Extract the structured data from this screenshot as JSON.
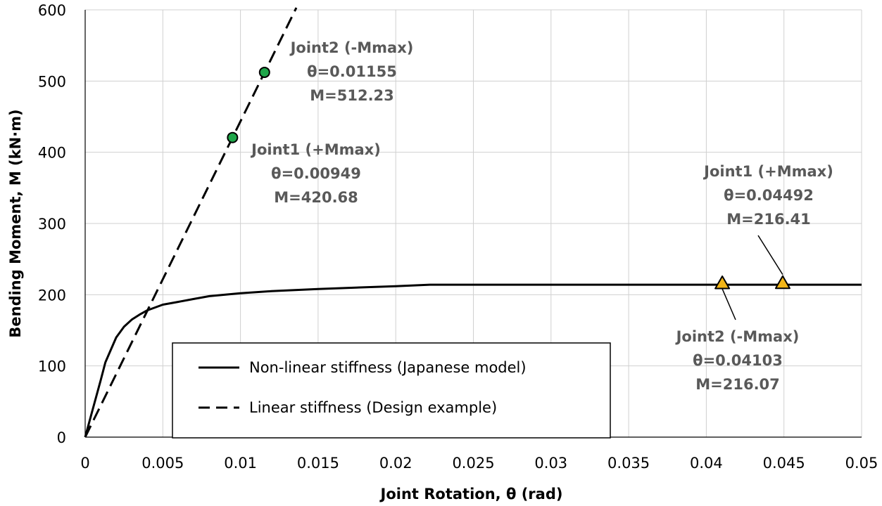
{
  "chart_data": {
    "type": "line",
    "title": "",
    "xlabel": "Joint Rotation, θ (rad)",
    "ylabel": "Bending Moment, M (kN·m)",
    "xlim": [
      0,
      0.05
    ],
    "ylim": [
      0,
      600
    ],
    "xticks": [
      0,
      0.005,
      0.01,
      0.015,
      0.02,
      0.025,
      0.03,
      0.035,
      0.04,
      0.045,
      0.05
    ],
    "xtick_labels": [
      "0",
      "0.005",
      "0.01",
      "0.015",
      "0.02",
      "0.025",
      "0.03",
      "0.035",
      "0.04",
      "0.045",
      "0.05"
    ],
    "yticks": [
      0,
      100,
      200,
      300,
      400,
      500,
      600
    ],
    "ytick_labels": [
      "0",
      "100",
      "200",
      "300",
      "400",
      "500",
      "600"
    ],
    "grid": true,
    "legend_position": "bottom-left",
    "series": [
      {
        "name": "Non-linear stiffness (Japanese model)",
        "style": "solid",
        "color": "#000000",
        "x": [
          0,
          0.0005,
          0.001,
          0.0013,
          0.0016,
          0.002,
          0.0025,
          0.003,
          0.0035,
          0.004,
          0.005,
          0.006,
          0.007,
          0.008,
          0.01,
          0.012,
          0.015,
          0.02,
          0.0222,
          0.05
        ],
        "y": [
          0,
          40,
          80,
          105,
          120,
          140,
          155,
          165,
          172,
          178,
          186,
          190,
          194,
          198,
          202,
          205,
          208,
          212,
          214,
          214
        ]
      },
      {
        "name": "Linear stiffness (Design example)",
        "style": "dashed",
        "color": "#000000",
        "x": [
          0,
          0.0136
        ],
        "y": [
          0,
          603
        ]
      }
    ],
    "markers": [
      {
        "name": "Joint2 (-Mmax)",
        "shape": "circle",
        "color": "#1fa64a",
        "x": 0.01155,
        "y": 512.23
      },
      {
        "name": "Joint1 (+Mmax)",
        "shape": "circle",
        "color": "#1fa64a",
        "x": 0.00949,
        "y": 420.68
      },
      {
        "name": "Joint2 (-Mmax)",
        "shape": "triangle",
        "color": "#f2b517",
        "x": 0.04103,
        "y": 216.07
      },
      {
        "name": "Joint1 (+Mmax)",
        "shape": "triangle",
        "color": "#f2b517",
        "x": 0.04492,
        "y": 216.41
      }
    ],
    "annotations": [
      {
        "lines": [
          "Joint2 (-Mmax)",
          "θ=0.01155",
          "M=512.23"
        ]
      },
      {
        "lines": [
          "Joint1 (+Mmax)",
          "θ=0.00949",
          "M=420.68"
        ]
      },
      {
        "lines": [
          "Joint1 (+Mmax)",
          "θ=0.04492",
          "M=216.41"
        ]
      },
      {
        "lines": [
          "Joint2 (-Mmax)",
          "θ=0.04103",
          "M=216.07"
        ]
      }
    ]
  }
}
